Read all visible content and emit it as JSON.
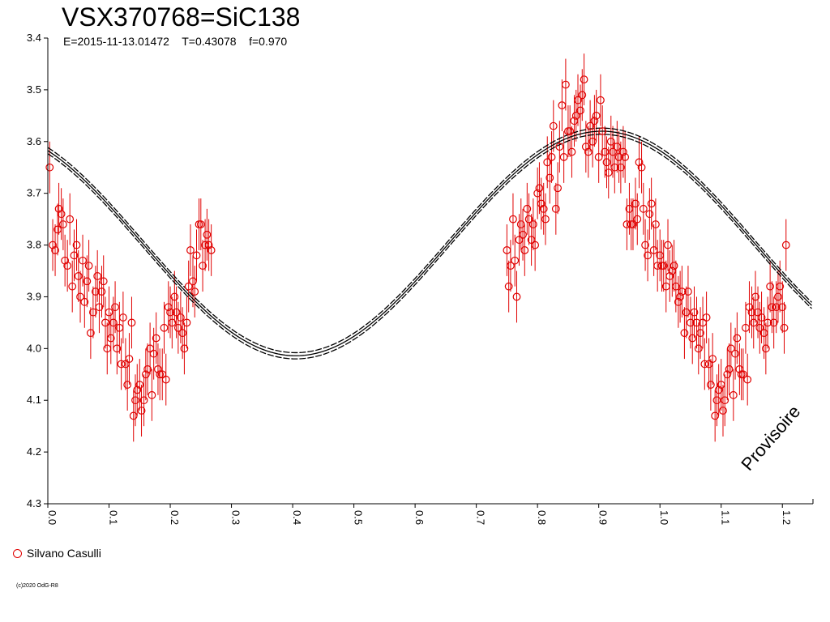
{
  "chart_data": {
    "type": "scatter",
    "title": "VSX370768=SiC138",
    "subtitle": "E=2015-11-13.01472    T=0.43078    f=0.970",
    "xlabel": "",
    "ylabel": "",
    "xlim": [
      0.0,
      1.25
    ],
    "ylim": [
      3.4,
      4.3
    ],
    "y_inverted": true,
    "x_ticks": [
      "0.0",
      "0.1",
      "0.2",
      "0.3",
      "0.4",
      "0.5",
      "0.6",
      "0.7",
      "0.8",
      "0.9",
      "1.0",
      "1.1",
      "1.2"
    ],
    "x_tick_values": [
      0.0,
      0.1,
      0.2,
      0.3,
      0.4,
      0.5,
      0.6,
      0.7,
      0.8,
      0.9,
      1.0,
      1.1,
      1.2
    ],
    "y_ticks": [
      "3.4",
      "3.5",
      "3.6",
      "3.7",
      "3.8",
      "3.9",
      "4.0",
      "4.1",
      "4.2",
      "4.3"
    ],
    "y_tick_values": [
      3.4,
      3.5,
      3.6,
      3.7,
      3.8,
      3.9,
      4.0,
      4.1,
      4.2,
      4.3
    ],
    "grid": false,
    "legend_position": "bottom-left",
    "marker_color": "#e00000",
    "curve_color": "#000000",
    "fit_model": {
      "mean": 3.797,
      "amplitude": 0.217,
      "max_phase": 0.905,
      "band": 0.006
    },
    "series": [
      {
        "name": "Silvano Casulli",
        "error": 0.05,
        "points": [
          [
            0.003,
            3.65
          ],
          [
            0.008,
            3.8
          ],
          [
            0.012,
            3.81
          ],
          [
            0.016,
            3.77
          ],
          [
            0.018,
            3.73
          ],
          [
            0.022,
            3.74
          ],
          [
            0.025,
            3.76
          ],
          [
            0.028,
            3.83
          ],
          [
            0.032,
            3.84
          ],
          [
            0.036,
            3.75
          ],
          [
            0.04,
            3.88
          ],
          [
            0.043,
            3.82
          ],
          [
            0.047,
            3.8
          ],
          [
            0.05,
            3.86
          ],
          [
            0.053,
            3.9
          ],
          [
            0.057,
            3.83
          ],
          [
            0.06,
            3.91
          ],
          [
            0.064,
            3.87
          ],
          [
            0.067,
            3.84
          ],
          [
            0.07,
            3.97
          ],
          [
            0.074,
            3.93
          ],
          [
            0.078,
            3.89
          ],
          [
            0.081,
            3.86
          ],
          [
            0.084,
            3.92
          ],
          [
            0.088,
            3.89
          ],
          [
            0.091,
            3.87
          ],
          [
            0.094,
            3.95
          ],
          [
            0.097,
            4.0
          ],
          [
            0.1,
            3.93
          ],
          [
            0.103,
            3.98
          ],
          [
            0.107,
            3.95
          ],
          [
            0.11,
            3.92
          ],
          [
            0.113,
            4.0
          ],
          [
            0.117,
            3.96
          ],
          [
            0.12,
            4.03
          ],
          [
            0.123,
            3.94
          ],
          [
            0.127,
            4.03
          ],
          [
            0.13,
            4.07
          ],
          [
            0.133,
            4.02
          ],
          [
            0.137,
            3.95
          ],
          [
            0.14,
            4.13
          ],
          [
            0.143,
            4.1
          ],
          [
            0.146,
            4.08
          ],
          [
            0.15,
            4.07
          ],
          [
            0.153,
            4.12
          ],
          [
            0.157,
            4.1
          ],
          [
            0.16,
            4.05
          ],
          [
            0.163,
            4.04
          ],
          [
            0.167,
            4.0
          ],
          [
            0.17,
            4.09
          ],
          [
            0.173,
            4.01
          ],
          [
            0.177,
            3.98
          ],
          [
            0.18,
            4.04
          ],
          [
            0.183,
            4.05
          ],
          [
            0.187,
            4.05
          ],
          [
            0.19,
            3.96
          ],
          [
            0.193,
            4.06
          ],
          [
            0.197,
            3.92
          ],
          [
            0.2,
            3.93
          ],
          [
            0.203,
            3.95
          ],
          [
            0.207,
            3.9
          ],
          [
            0.21,
            3.93
          ],
          [
            0.213,
            3.96
          ],
          [
            0.217,
            3.94
          ],
          [
            0.22,
            3.97
          ],
          [
            0.223,
            4.0
          ],
          [
            0.227,
            3.95
          ],
          [
            0.23,
            3.88
          ],
          [
            0.233,
            3.81
          ],
          [
            0.237,
            3.87
          ],
          [
            0.24,
            3.89
          ],
          [
            0.243,
            3.82
          ],
          [
            0.247,
            3.76
          ],
          [
            0.25,
            3.76
          ],
          [
            0.253,
            3.84
          ],
          [
            0.257,
            3.8
          ],
          [
            0.26,
            3.78
          ],
          [
            0.263,
            3.8
          ],
          [
            0.267,
            3.81
          ],
          [
            0.75,
            3.81
          ],
          [
            0.753,
            3.88
          ],
          [
            0.756,
            3.84
          ],
          [
            0.76,
            3.75
          ],
          [
            0.763,
            3.83
          ],
          [
            0.766,
            3.9
          ],
          [
            0.77,
            3.79
          ],
          [
            0.773,
            3.76
          ],
          [
            0.776,
            3.78
          ],
          [
            0.779,
            3.81
          ],
          [
            0.783,
            3.73
          ],
          [
            0.786,
            3.75
          ],
          [
            0.79,
            3.79
          ],
          [
            0.793,
            3.76
          ],
          [
            0.796,
            3.8
          ],
          [
            0.8,
            3.7
          ],
          [
            0.803,
            3.69
          ],
          [
            0.806,
            3.72
          ],
          [
            0.81,
            3.73
          ],
          [
            0.813,
            3.75
          ],
          [
            0.816,
            3.64
          ],
          [
            0.82,
            3.67
          ],
          [
            0.823,
            3.63
          ],
          [
            0.826,
            3.57
          ],
          [
            0.83,
            3.73
          ],
          [
            0.833,
            3.69
          ],
          [
            0.836,
            3.61
          ],
          [
            0.84,
            3.53
          ],
          [
            0.843,
            3.63
          ],
          [
            0.846,
            3.49
          ],
          [
            0.85,
            3.58
          ],
          [
            0.853,
            3.58
          ],
          [
            0.856,
            3.62
          ],
          [
            0.86,
            3.56
          ],
          [
            0.863,
            3.55
          ],
          [
            0.866,
            3.52
          ],
          [
            0.87,
            3.54
          ],
          [
            0.873,
            3.51
          ],
          [
            0.876,
            3.48
          ],
          [
            0.879,
            3.61
          ],
          [
            0.883,
            3.62
          ],
          [
            0.886,
            3.57
          ],
          [
            0.89,
            3.6
          ],
          [
            0.893,
            3.56
          ],
          [
            0.896,
            3.55
          ],
          [
            0.9,
            3.63
          ],
          [
            0.903,
            3.52
          ],
          [
            0.906,
            3.58
          ],
          [
            0.91,
            3.62
          ],
          [
            0.913,
            3.64
          ],
          [
            0.916,
            3.66
          ],
          [
            0.92,
            3.6
          ],
          [
            0.923,
            3.62
          ],
          [
            0.926,
            3.65
          ],
          [
            0.93,
            3.61
          ],
          [
            0.933,
            3.63
          ],
          [
            0.936,
            3.65
          ],
          [
            0.94,
            3.62
          ],
          [
            0.943,
            3.63
          ],
          [
            0.946,
            3.76
          ],
          [
            0.95,
            3.73
          ],
          [
            0.953,
            3.76
          ],
          [
            0.956,
            3.76
          ],
          [
            0.96,
            3.72
          ],
          [
            0.963,
            3.75
          ],
          [
            0.966,
            3.64
          ],
          [
            0.97,
            3.65
          ],
          [
            0.973,
            3.73
          ],
          [
            0.976,
            3.8
          ],
          [
            0.98,
            3.82
          ],
          [
            0.983,
            3.74
          ],
          [
            0.986,
            3.72
          ],
          [
            0.99,
            3.81
          ],
          [
            0.993,
            3.76
          ],
          [
            0.996,
            3.84
          ],
          [
            1.0,
            3.82
          ],
          [
            1.003,
            3.84
          ],
          [
            1.006,
            3.84
          ],
          [
            1.01,
            3.88
          ],
          [
            1.013,
            3.8
          ],
          [
            1.016,
            3.86
          ],
          [
            1.02,
            3.85
          ],
          [
            1.023,
            3.84
          ],
          [
            1.026,
            3.88
          ],
          [
            1.03,
            3.91
          ],
          [
            1.033,
            3.9
          ],
          [
            1.036,
            3.89
          ],
          [
            1.04,
            3.97
          ],
          [
            1.043,
            3.93
          ],
          [
            1.046,
            3.89
          ],
          [
            1.05,
            3.95
          ],
          [
            1.053,
            3.98
          ],
          [
            1.056,
            3.93
          ],
          [
            1.06,
            3.95
          ],
          [
            1.063,
            4.0
          ],
          [
            1.066,
            3.97
          ],
          [
            1.07,
            3.95
          ],
          [
            1.073,
            4.03
          ],
          [
            1.076,
            3.94
          ],
          [
            1.08,
            4.03
          ],
          [
            1.083,
            4.07
          ],
          [
            1.086,
            4.02
          ],
          [
            1.09,
            4.13
          ],
          [
            1.093,
            4.1
          ],
          [
            1.096,
            4.08
          ],
          [
            1.1,
            4.07
          ],
          [
            1.103,
            4.12
          ],
          [
            1.106,
            4.1
          ],
          [
            1.11,
            4.05
          ],
          [
            1.113,
            4.04
          ],
          [
            1.116,
            4.0
          ],
          [
            1.12,
            4.09
          ],
          [
            1.123,
            4.01
          ],
          [
            1.126,
            3.98
          ],
          [
            1.13,
            4.04
          ],
          [
            1.133,
            4.05
          ],
          [
            1.136,
            4.05
          ],
          [
            1.14,
            3.96
          ],
          [
            1.143,
            4.06
          ],
          [
            1.146,
            3.92
          ],
          [
            1.15,
            3.93
          ],
          [
            1.153,
            3.95
          ],
          [
            1.156,
            3.9
          ],
          [
            1.16,
            3.93
          ],
          [
            1.163,
            3.96
          ],
          [
            1.166,
            3.94
          ],
          [
            1.17,
            3.97
          ],
          [
            1.173,
            4.0
          ],
          [
            1.176,
            3.95
          ],
          [
            1.18,
            3.88
          ],
          [
            1.183,
            3.92
          ],
          [
            1.186,
            3.95
          ],
          [
            1.19,
            3.92
          ],
          [
            1.193,
            3.9
          ],
          [
            1.196,
            3.88
          ],
          [
            1.2,
            3.92
          ],
          [
            1.203,
            3.96
          ],
          [
            1.206,
            3.8
          ]
        ]
      }
    ]
  },
  "legend": {
    "label": "Silvano Casulli"
  },
  "credit": "(c)2020 OdG-R8",
  "watermark": "Provisoire"
}
